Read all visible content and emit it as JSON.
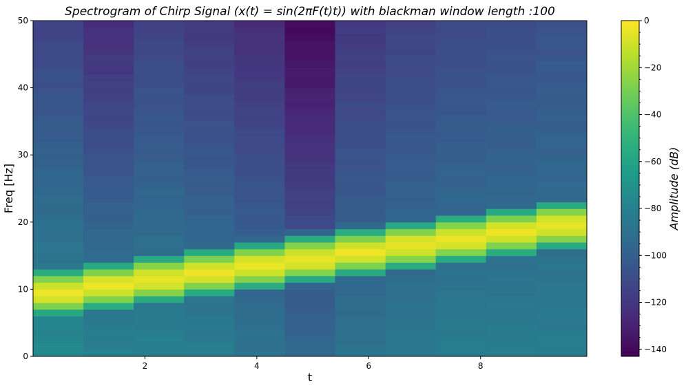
{
  "chart_data": {
    "type": "heatmap",
    "title": "Spectrogram of Chirp Signal (x(t) = sin(2πF(t)t)) with blackman window length :100",
    "xlabel": "t",
    "ylabel": "Freq [Hz]",
    "colorbar_label": "Amplitude (dB)",
    "colormap": "viridis",
    "xlim": [
      0,
      9.9
    ],
    "ylim": [
      0,
      50
    ],
    "xticks": [
      2,
      4,
      6,
      8
    ],
    "yticks": [
      0,
      10,
      20,
      30,
      40,
      50
    ],
    "clim": [
      -143,
      0
    ],
    "cbar_ticks": [
      0,
      -20,
      -40,
      -60,
      -80,
      -100,
      -120,
      -140
    ],
    "time_bins": [
      0,
      0.9,
      1.8,
      2.7,
      3.6,
      4.5,
      5.4,
      6.3,
      7.2,
      8.1,
      9.0,
      9.9
    ],
    "freq_bin_hz": 1,
    "ridge_peak_hz": [
      9.5,
      10.5,
      11.5,
      12.5,
      13.5,
      14.5,
      15.5,
      16.5,
      17.5,
      18.5,
      19.5
    ],
    "background_db_low_freq": [
      -75,
      -80,
      -80,
      -82,
      -88,
      -94,
      -88,
      -85,
      -82,
      -82,
      -82
    ],
    "background_db_high_freq": [
      -115,
      -125,
      -115,
      -120,
      -125,
      -140,
      -120,
      -115,
      -112,
      -110,
      -107
    ]
  }
}
